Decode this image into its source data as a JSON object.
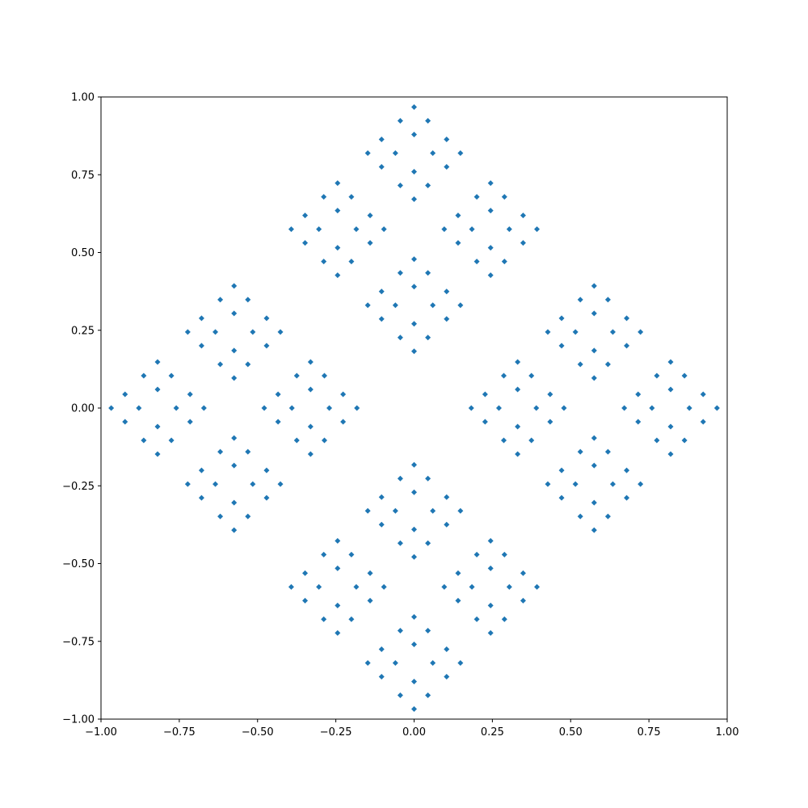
{
  "chart_data": {
    "type": "scatter",
    "title": "",
    "xlabel": "",
    "ylabel": "",
    "xlim": [
      -1.0,
      1.0
    ],
    "ylim": [
      -1.0,
      1.0
    ],
    "grid": false,
    "legend": "none",
    "x_ticks": [
      -1.0,
      -0.75,
      -0.5,
      -0.25,
      0.0,
      0.25,
      0.5,
      0.75,
      1.0
    ],
    "y_ticks": [
      -1.0,
      -0.75,
      -0.5,
      -0.25,
      0.0,
      0.25,
      0.5,
      0.75,
      1.0
    ],
    "x_tick_labels": [
      "−1.00",
      "−0.75",
      "−0.50",
      "−0.25",
      "0.00",
      "0.25",
      "0.50",
      "0.75",
      "1.00"
    ],
    "y_tick_labels": [
      "−1.00",
      "−0.75",
      "−0.50",
      "−0.25",
      "0.00",
      "0.25",
      "0.50",
      "0.75",
      "1.00"
    ],
    "series": [
      {
        "color": "#1f77b4",
        "pattern": "self-similar diamond fractal: 4 diamonds at (±0.575, 0), (0, ±0.575) with half-diagonal 0.425, each subdivided into 4 smaller diamonds at scale 0.425",
        "level1_centers": [
          [
            0.575,
            0
          ],
          [
            -0.575,
            0
          ],
          [
            0,
            0.575
          ],
          [
            0,
            -0.575
          ]
        ],
        "scale": 0.425,
        "depth": 4
      }
    ]
  }
}
